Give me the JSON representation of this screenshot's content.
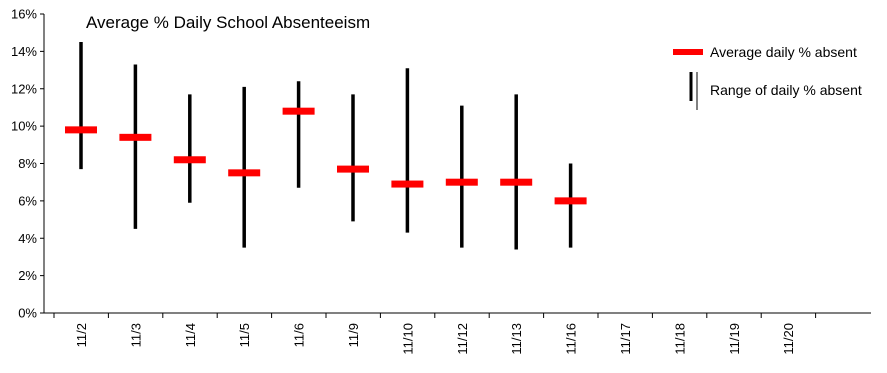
{
  "chart_data": {
    "type": "error-bar",
    "title": "Average % Daily School Absenteeism",
    "categories": [
      "11/2",
      "11/3",
      "11/4",
      "11/5",
      "11/6",
      "11/9",
      "11/10",
      "11/12",
      "11/13",
      "11/16",
      "11/17",
      "11/18",
      "11/19",
      "11/20"
    ],
    "series": [
      {
        "name": "Average daily % absent",
        "color": "#ff0000",
        "values": [
          9.8,
          9.4,
          8.2,
          7.5,
          10.8,
          7.7,
          6.9,
          7.0,
          7.0,
          6.0,
          null,
          null,
          null,
          null
        ]
      },
      {
        "name": "Range of daily % absent",
        "color": "#000000",
        "low": [
          7.7,
          4.5,
          5.9,
          3.5,
          6.7,
          4.9,
          4.3,
          3.5,
          3.4,
          3.5,
          null,
          null,
          null,
          null
        ],
        "high": [
          14.5,
          13.3,
          11.7,
          12.1,
          12.4,
          11.7,
          13.1,
          11.1,
          11.7,
          8.0,
          null,
          null,
          null,
          null
        ]
      }
    ],
    "y_ticks": [
      "0%",
      "2%",
      "4%",
      "6%",
      "8%",
      "10%",
      "12%",
      "14%",
      "16%"
    ],
    "ylim": [
      0,
      16
    ],
    "y_tick_step": 2,
    "grid": false,
    "legend_position": "top-right"
  }
}
